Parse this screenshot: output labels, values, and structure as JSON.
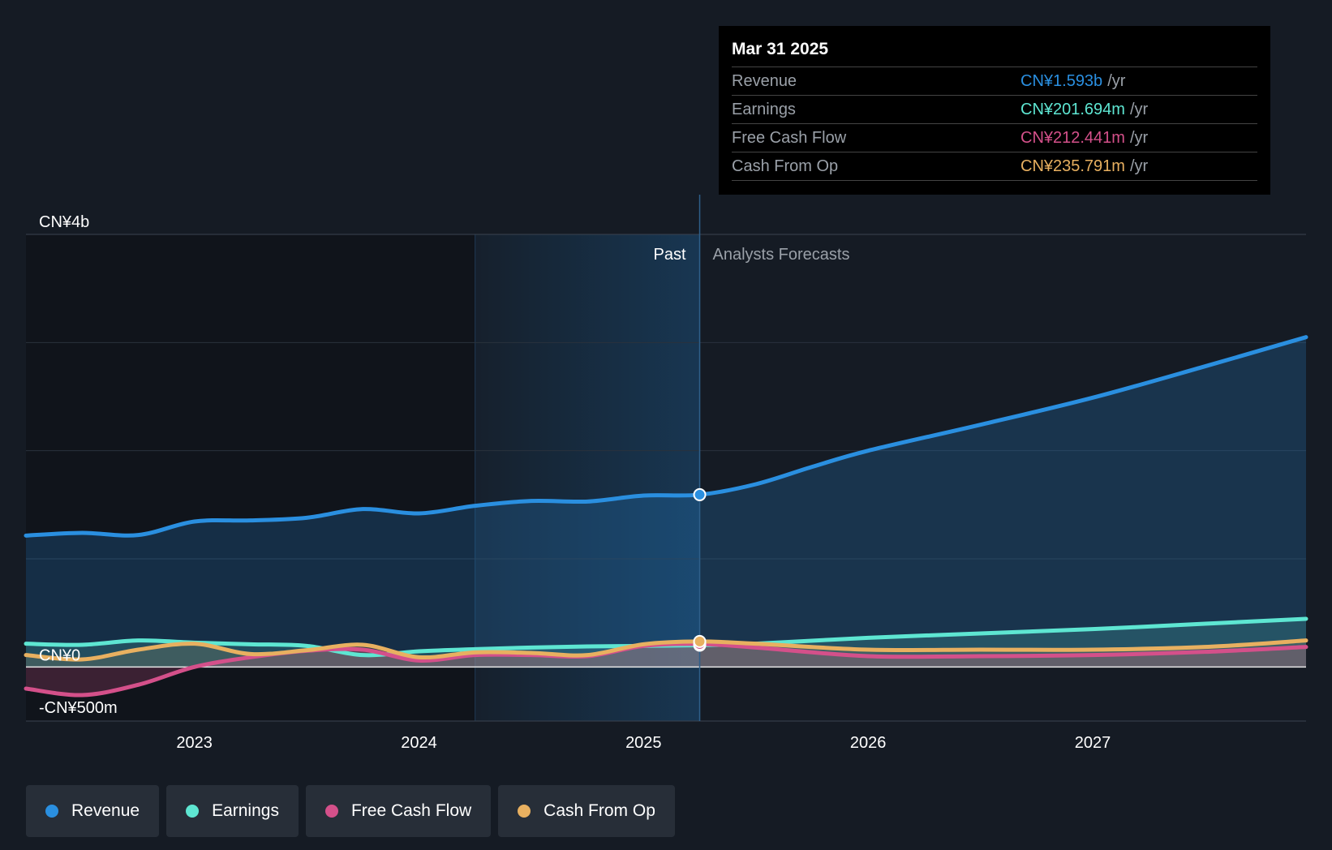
{
  "chart_data": {
    "type": "line",
    "y_unit": "CN¥",
    "y_ticks": [
      {
        "value": 4000,
        "label": "CN¥4b"
      },
      {
        "value": 0,
        "label": "CN¥0"
      },
      {
        "value": -500,
        "label": "-CN¥500m"
      }
    ],
    "ylim": [
      -500,
      4000
    ],
    "xlim": [
      2022.25,
      2027.95
    ],
    "x_ticks": [
      {
        "value": 2023,
        "label": "2023"
      },
      {
        "value": 2024,
        "label": "2024"
      },
      {
        "value": 2025,
        "label": "2025"
      },
      {
        "value": 2026,
        "label": "2026"
      },
      {
        "value": 2027,
        "label": "2027"
      }
    ],
    "highlight_start": 2024.25,
    "divider_x": 2025.25,
    "past_label": "Past",
    "forecast_label": "Analysts Forecasts",
    "series": [
      {
        "name": "Revenue",
        "color": "#2a8fe0",
        "area": true,
        "points": [
          [
            2022.25,
            1215
          ],
          [
            2022.5,
            1240
          ],
          [
            2022.75,
            1220
          ],
          [
            2023.0,
            1345
          ],
          [
            2023.25,
            1355
          ],
          [
            2023.5,
            1380
          ],
          [
            2023.75,
            1460
          ],
          [
            2024.0,
            1420
          ],
          [
            2024.25,
            1490
          ],
          [
            2024.5,
            1535
          ],
          [
            2024.75,
            1530
          ],
          [
            2025.0,
            1585
          ],
          [
            2025.25,
            1593
          ],
          [
            2025.5,
            1690
          ],
          [
            2025.75,
            1850
          ],
          [
            2026.0,
            2000
          ],
          [
            2026.5,
            2240
          ],
          [
            2027.0,
            2490
          ],
          [
            2027.5,
            2780
          ],
          [
            2027.95,
            3050
          ]
        ]
      },
      {
        "name": "Earnings",
        "color": "#5ee6d2",
        "area": true,
        "points": [
          [
            2022.25,
            215
          ],
          [
            2022.5,
            205
          ],
          [
            2022.75,
            245
          ],
          [
            2023.0,
            225
          ],
          [
            2023.25,
            210
          ],
          [
            2023.5,
            195
          ],
          [
            2023.75,
            110
          ],
          [
            2024.0,
            145
          ],
          [
            2024.25,
            165
          ],
          [
            2024.5,
            180
          ],
          [
            2024.75,
            190
          ],
          [
            2025.0,
            195
          ],
          [
            2025.25,
            201.694
          ],
          [
            2025.5,
            215
          ],
          [
            2026.0,
            270
          ],
          [
            2026.5,
            310
          ],
          [
            2027.0,
            350
          ],
          [
            2027.5,
            400
          ],
          [
            2027.95,
            445
          ]
        ]
      },
      {
        "name": "Free Cash Flow",
        "color": "#d4508a",
        "area": true,
        "points": [
          [
            2022.25,
            -200
          ],
          [
            2022.5,
            -260
          ],
          [
            2022.75,
            -165
          ],
          [
            2023.0,
            0
          ],
          [
            2023.25,
            90
          ],
          [
            2023.5,
            150
          ],
          [
            2023.75,
            160
          ],
          [
            2024.0,
            60
          ],
          [
            2024.25,
            110
          ],
          [
            2024.5,
            110
          ],
          [
            2024.75,
            100
          ],
          [
            2025.0,
            195
          ],
          [
            2025.25,
            212.441
          ],
          [
            2025.5,
            180
          ],
          [
            2026.0,
            100
          ],
          [
            2026.5,
            100
          ],
          [
            2027.0,
            110
          ],
          [
            2027.5,
            140
          ],
          [
            2027.95,
            185
          ]
        ]
      },
      {
        "name": "Cash From Op",
        "color": "#e8b060",
        "area": true,
        "points": [
          [
            2022.25,
            110
          ],
          [
            2022.5,
            70
          ],
          [
            2022.75,
            160
          ],
          [
            2023.0,
            215
          ],
          [
            2023.25,
            120
          ],
          [
            2023.5,
            155
          ],
          [
            2023.75,
            205
          ],
          [
            2024.0,
            90
          ],
          [
            2024.25,
            135
          ],
          [
            2024.5,
            130
          ],
          [
            2024.75,
            110
          ],
          [
            2025.0,
            210
          ],
          [
            2025.25,
            235.791
          ],
          [
            2025.5,
            215
          ],
          [
            2026.0,
            160
          ],
          [
            2026.5,
            160
          ],
          [
            2027.0,
            160
          ],
          [
            2027.5,
            185
          ],
          [
            2027.95,
            245
          ]
        ]
      }
    ]
  },
  "tooltip": {
    "date": "Mar 31 2025",
    "unit": "/yr",
    "rows": [
      {
        "label": "Revenue",
        "value": "CN¥1.593b",
        "color": "#2a8fe0"
      },
      {
        "label": "Earnings",
        "value": "CN¥201.694m",
        "color": "#5ee6d2"
      },
      {
        "label": "Free Cash Flow",
        "value": "CN¥212.441m",
        "color": "#d4508a"
      },
      {
        "label": "Cash From Op",
        "value": "CN¥235.791m",
        "color": "#e8b060"
      }
    ]
  },
  "legend": [
    {
      "label": "Revenue",
      "color": "#2a8fe0"
    },
    {
      "label": "Earnings",
      "color": "#5ee6d2"
    },
    {
      "label": "Free Cash Flow",
      "color": "#d4508a"
    },
    {
      "label": "Cash From Op",
      "color": "#e8b060"
    }
  ]
}
